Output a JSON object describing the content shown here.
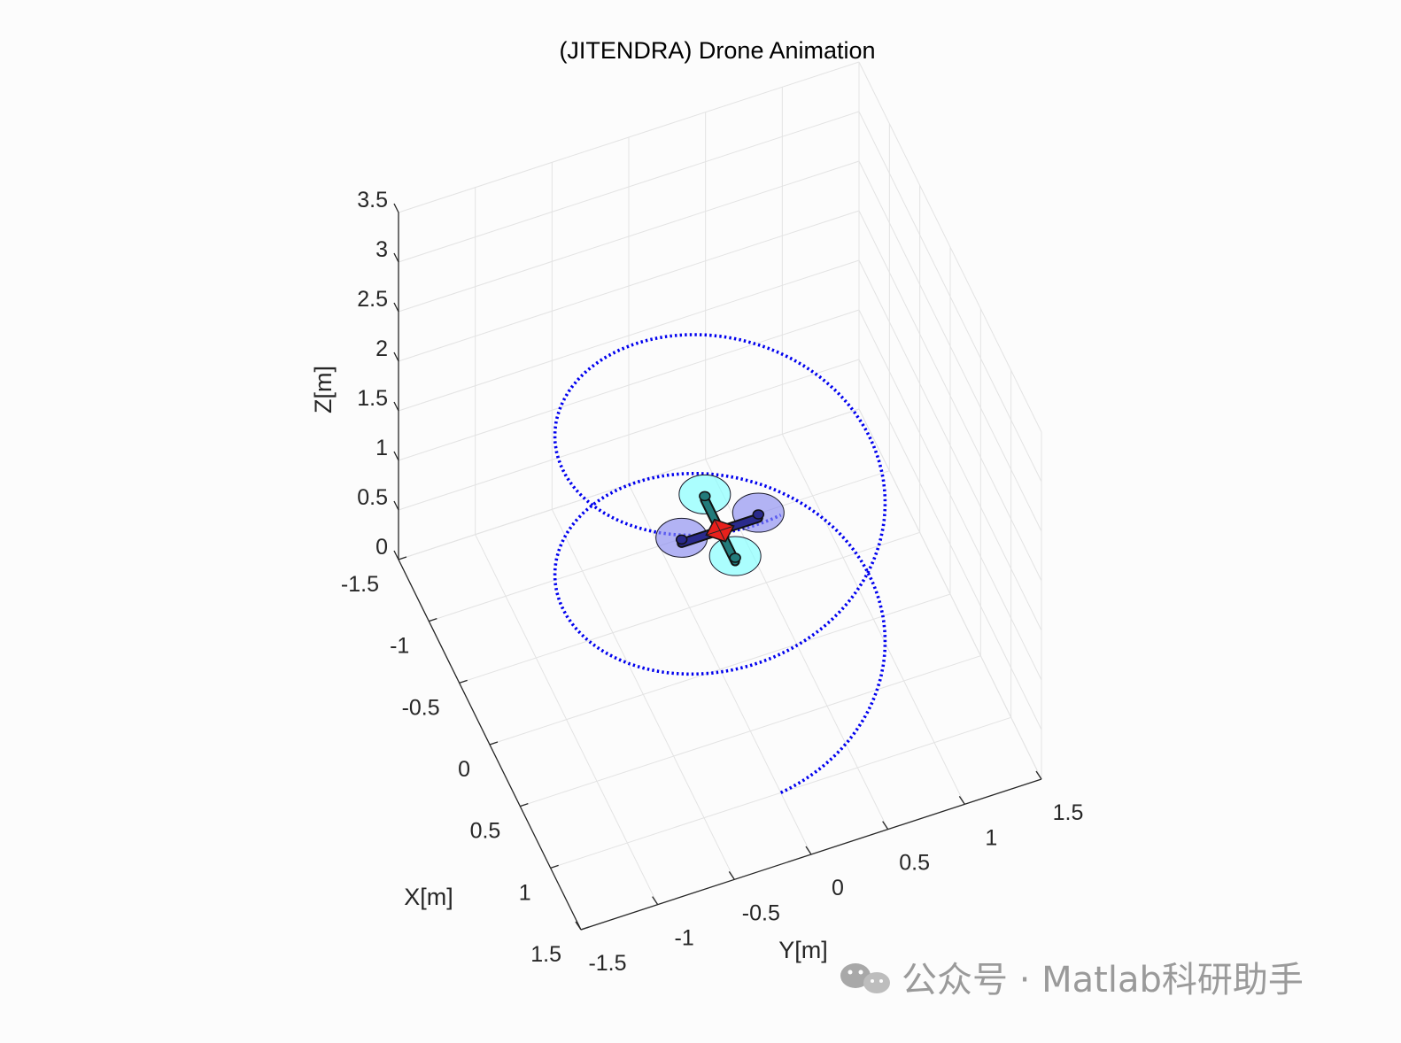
{
  "chart_data": {
    "type": "line3d",
    "title": "(JITENDRA) Drone Animation",
    "xlabel": "X[m]",
    "ylabel": "Y[m]",
    "zlabel": "Z[m]",
    "xlim": [
      -1.5,
      1.5
    ],
    "ylim": [
      -1.5,
      1.5
    ],
    "zlim": [
      0,
      3.5
    ],
    "xticks": [
      "-1.5",
      "-1",
      "-0.5",
      "0",
      "0.5",
      "1",
      "1.5"
    ],
    "yticks": [
      "-1.5",
      "-1",
      "-0.5",
      "0",
      "0.5",
      "1",
      "1.5"
    ],
    "zticks": [
      "0",
      "0.5",
      "1",
      "1.5",
      "2",
      "2.5",
      "3",
      "3.5"
    ],
    "grid": true,
    "trajectory": {
      "name": "drone path",
      "style": "dotted",
      "color": "#0000ee",
      "shape": "helix",
      "radius": 1.0,
      "z_start": 0.0,
      "z_end": 2.8,
      "turns": 2.0
    },
    "drone": {
      "position": [
        0.0,
        0.0,
        1.4
      ],
      "arm_length": 0.25,
      "body_color": "#e8201c",
      "front_rotor_color": "#7fffff",
      "rear_rotor_color": "#8a8cf0",
      "arm_colors": [
        "#227b7b",
        "#2a2a8c"
      ]
    }
  },
  "watermark": {
    "icon": "wechat-icon",
    "text": "公众号 · Matlab科研助手"
  }
}
